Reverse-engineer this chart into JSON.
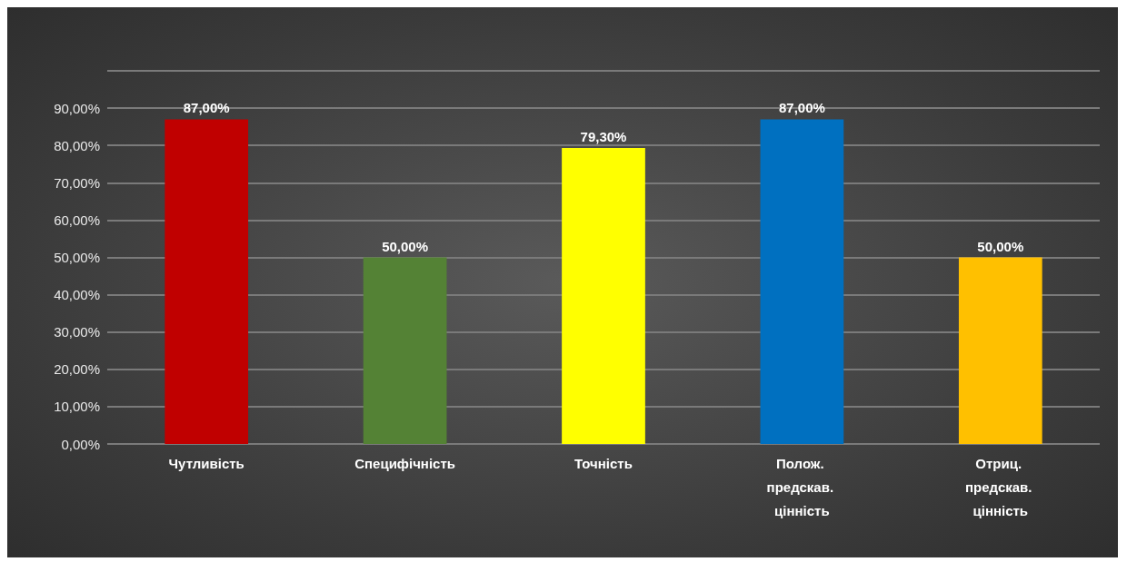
{
  "chart_data": {
    "type": "bar",
    "categories": [
      "Чутливість",
      "Специфічність",
      "Точність",
      "Полож. предскав. цінність",
      "Отриц. предскав. цінність"
    ],
    "values": [
      87,
      50,
      79.3,
      87,
      50
    ],
    "colors": [
      "#c00000",
      "#548235",
      "#ffff00",
      "#0070c0",
      "#ffc000"
    ],
    "value_labels": [
      "87,00%",
      "50,00%",
      "79,30%",
      "87,00%",
      "50,00%"
    ],
    "ylim": [
      0,
      100
    ],
    "yticks": [
      {
        "value": 0,
        "label": "0,00%"
      },
      {
        "value": 10,
        "label": "10,00%"
      },
      {
        "value": 20,
        "label": "20,00%"
      },
      {
        "value": 30,
        "label": "30,00%"
      },
      {
        "value": 40,
        "label": "40,00%"
      },
      {
        "value": 50,
        "label": "50,00%"
      },
      {
        "value": 60,
        "label": "60,00%"
      },
      {
        "value": 70,
        "label": "70,00%"
      },
      {
        "value": 80,
        "label": "80,00%"
      },
      {
        "value": 90,
        "label": "90,00%"
      },
      {
        "value": 100,
        "label": null
      }
    ],
    "grid": "y"
  }
}
